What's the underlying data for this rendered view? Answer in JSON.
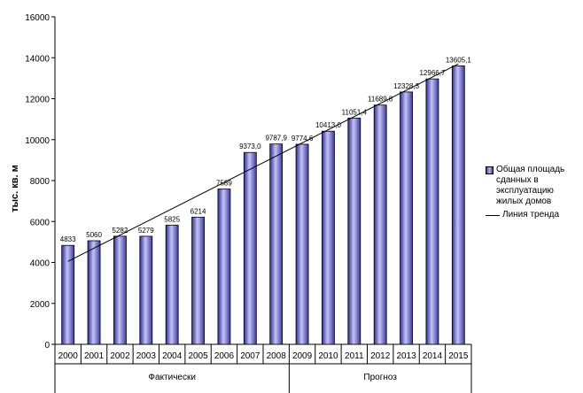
{
  "chart_data": {
    "type": "bar",
    "ylabel": "тыс. кв. м",
    "ylim": [
      0,
      16000
    ],
    "yticks": [
      0,
      2000,
      4000,
      6000,
      8000,
      10000,
      12000,
      14000,
      16000
    ],
    "categories": [
      "2000",
      "2001",
      "2002",
      "2003",
      "2004",
      "2005",
      "2006",
      "2007",
      "2008",
      "2009",
      "2010",
      "2011",
      "2012",
      "2013",
      "2014",
      "2015"
    ],
    "values": [
      4833,
      5060,
      5282,
      5279,
      5825,
      6214,
      7589,
      9373.0,
      9787.9,
      9774.6,
      10413.0,
      11051.4,
      11689.8,
      12328.3,
      12966.7,
      13605.1
    ],
    "value_labels": [
      "4833",
      "5060",
      "5282",
      "5279",
      "5825",
      "6214",
      "7589",
      "9373,0",
      "9787,9",
      "9774,6",
      "10413,0",
      "11051,4",
      "11689,8",
      "12328,3",
      "12966,7",
      "13605,1"
    ],
    "groups": [
      {
        "label": "Фактически",
        "categories": [
          "2000",
          "2001",
          "2002",
          "2003",
          "2004",
          "2005",
          "2006",
          "2007",
          "2008"
        ]
      },
      {
        "label": "Прогноз",
        "categories": [
          "2009",
          "2010",
          "2011",
          "2012",
          "2013",
          "2014",
          "2015"
        ]
      }
    ],
    "series": [
      {
        "name": "Общая площадь сданных в эксплуатацию жилых домов",
        "type": "bar",
        "color": "#6b6bd6"
      },
      {
        "name": "Линия тренда",
        "type": "line",
        "color": "#000000",
        "trend": {
          "start": 4050,
          "end": 13700
        }
      }
    ],
    "legend_position": "right",
    "grid": false
  }
}
